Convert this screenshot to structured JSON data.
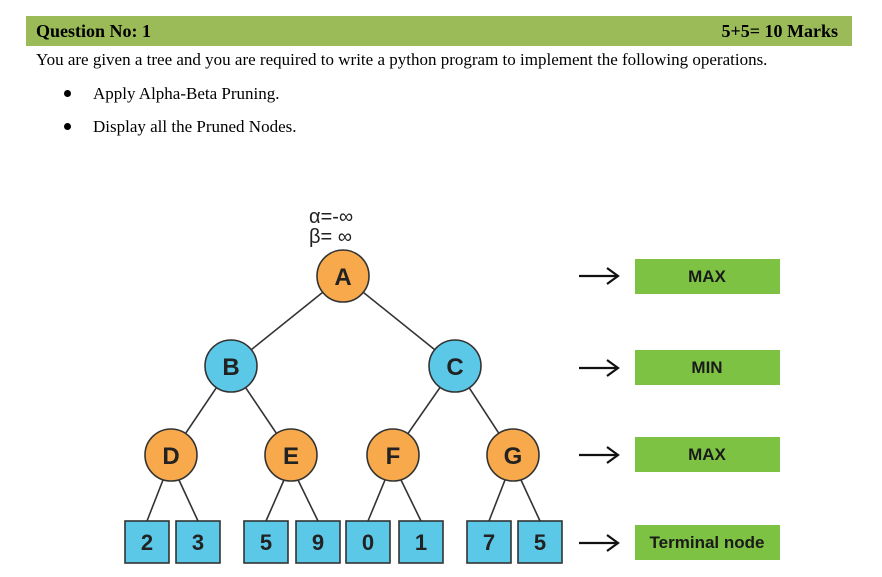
{
  "question": {
    "title": "Question No: 1",
    "marks": "5+5= 10 Marks",
    "intro": "You are given a tree and you are required to write a python program to implement the following operations.",
    "bullets": [
      "Apply Alpha-Beta Pruning.",
      "Display all the Pruned Nodes."
    ]
  },
  "tree": {
    "alpha_label": "α=-∞",
    "beta_label": "β= ∞",
    "nodes": {
      "A": "A",
      "B": "B",
      "C": "C",
      "D": "D",
      "E": "E",
      "F": "F",
      "G": "G"
    },
    "leaves": [
      "2",
      "3",
      "5",
      "9",
      "0",
      "1",
      "7",
      "5"
    ],
    "levels": [
      "MAX",
      "MIN",
      "MAX",
      "Terminal node"
    ]
  },
  "colors": {
    "header_bar": "#9bbb59",
    "max_node": "#f7a94b",
    "min_node": "#5bc8e8",
    "leaf": "#5bc8e8",
    "level_box": "#7dc242"
  }
}
